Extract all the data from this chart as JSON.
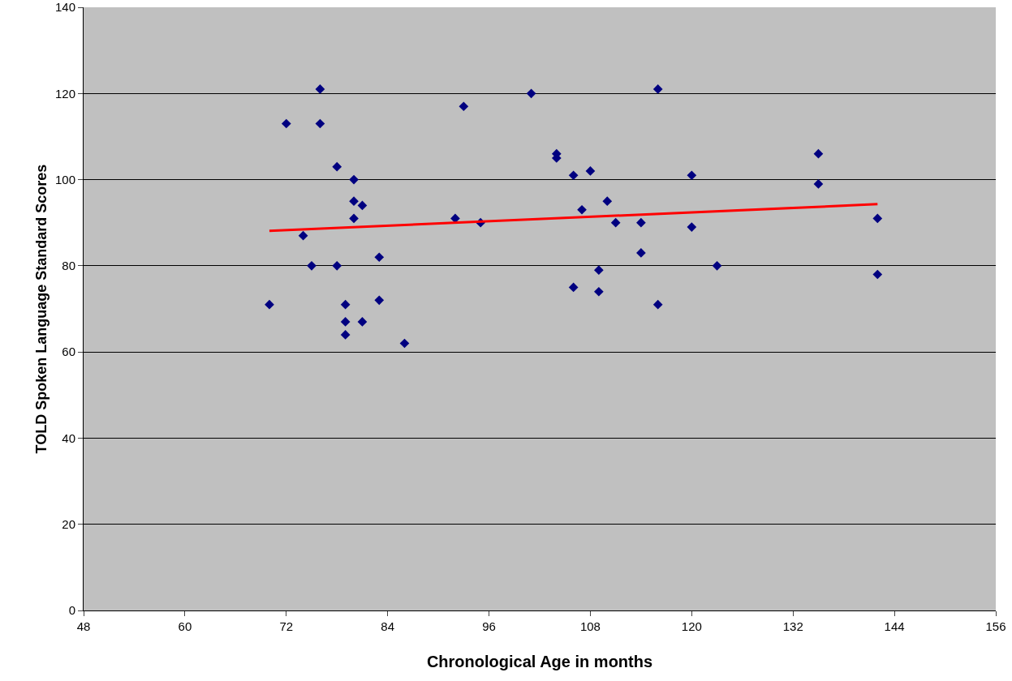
{
  "chart_data": {
    "type": "scatter",
    "xlabel": "Chronological Age in months",
    "ylabel": "TOLD Spoken Language Standard Scores",
    "xlim": [
      48,
      156
    ],
    "xticks": [
      48,
      60,
      72,
      84,
      96,
      108,
      120,
      132,
      144,
      156
    ],
    "ylim": [
      0,
      140
    ],
    "yticks": [
      0,
      20,
      40,
      60,
      80,
      100,
      120,
      140
    ],
    "grid": "y",
    "series": [
      {
        "color": "#000080",
        "marker": "diamond",
        "x": [
          70,
          72,
          74,
          75,
          76,
          76,
          78,
          78,
          79,
          79,
          79,
          80,
          80,
          80,
          81,
          81,
          83,
          83,
          86,
          92,
          93,
          95,
          101,
          104,
          104,
          106,
          106,
          107,
          108,
          109,
          109,
          110,
          111,
          114,
          114,
          116,
          116,
          120,
          120,
          123,
          135,
          135,
          142,
          142
        ],
        "values": [
          71,
          113,
          87,
          80,
          121,
          113,
          103,
          80,
          71,
          67,
          64,
          100,
          95,
          91,
          94,
          67,
          82,
          72,
          62,
          91,
          117,
          90,
          120,
          106,
          105,
          101,
          75,
          93,
          102,
          79,
          74,
          95,
          90,
          90,
          83,
          121,
          71,
          101,
          89,
          80,
          106,
          99,
          91,
          78
        ]
      },
      {
        "type": "line",
        "color": "#ff0000",
        "marker": "none",
        "x": [
          70,
          142
        ],
        "values": [
          88.1,
          94.3
        ]
      }
    ]
  }
}
